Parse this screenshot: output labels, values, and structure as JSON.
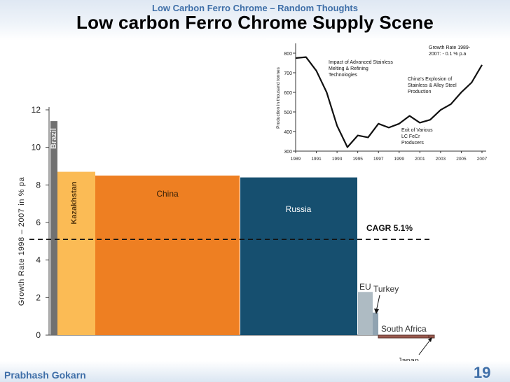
{
  "header": {
    "subtitle": "Low Carbon Ferro Chrome – Random Thoughts",
    "title": "Low carbon Ferro Chrome Supply Scene"
  },
  "footer": {
    "author": "Prabhash Gokarn",
    "page": "19"
  },
  "colors": {
    "accent": "#3f6fa8",
    "china": "#ee7f22",
    "russia": "#164f6f",
    "kazakhstan": "#fbbb55",
    "brazil": "#717171",
    "eu": "#aebbc3",
    "turkey": "#90a3b1"
  },
  "chart_data": [
    {
      "type": "bar",
      "variant": "variable-width",
      "ylabel": "Growth Rate 1998 – 2007 in % pa",
      "ylim": [
        0,
        12
      ],
      "yticks": [
        0,
        2,
        4,
        6,
        8,
        10,
        12
      ],
      "bars": [
        {
          "name": "Brazil",
          "value": 11.4,
          "color": "#717171",
          "label_style": "vertical-inside"
        },
        {
          "name": "Kazakhstan",
          "value": 8.7,
          "color": "#fbbb55",
          "label_style": "vertical-inside"
        },
        {
          "name": "China",
          "value": 8.5,
          "color": "#ee7f22",
          "label_style": "inside"
        },
        {
          "name": "Russia",
          "value": 8.4,
          "color": "#164f6f",
          "label_style": "inside"
        },
        {
          "name": "EU",
          "value": 2.3,
          "color": "#aebbc3",
          "label_style": "above"
        },
        {
          "name": "Turkey",
          "value": 1.2,
          "color": "#90a3b1",
          "label_style": "arrow"
        },
        {
          "name": "South Africa",
          "value": -0.15,
          "color": "#9b5a4e",
          "label_style": "above"
        },
        {
          "name": "Japan",
          "value": -0.15,
          "color": "#9b5a4e",
          "label_style": "below-arrow"
        }
      ],
      "reference_line": {
        "label": "CAGR 5.1%",
        "value": 5.1
      }
    },
    {
      "type": "line",
      "ylabel": "Production in thousand tonnes",
      "ylim": [
        300,
        850
      ],
      "yticks": [
        300,
        400,
        500,
        600,
        700,
        800
      ],
      "xticks": [
        "1989",
        "1991",
        "1993",
        "1995",
        "1997",
        "1999",
        "2001",
        "2003",
        "2005",
        "2007"
      ],
      "series": [
        {
          "x": [
            1989,
            1990,
            1991,
            1992,
            1993,
            1994,
            1995,
            1996,
            1997,
            1998,
            1999,
            2000,
            2001,
            2002,
            2003,
            2004,
            2005,
            2006,
            2007
          ],
          "values": [
            775,
            780,
            710,
            600,
            430,
            320,
            380,
            370,
            440,
            420,
            440,
            480,
            445,
            460,
            510,
            540,
            600,
            650,
            740
          ]
        }
      ],
      "annotations": [
        {
          "lines": [
            "Growth Rate 1989-",
            "2007: - 0.1 % p.a"
          ]
        },
        {
          "lines": [
            "Impact of Advanced Stainless",
            "Melting & Refining",
            "Technologies"
          ]
        },
        {
          "lines": [
            "China's Explosion of",
            "Stainless & Alloy Steel",
            "Production"
          ]
        },
        {
          "lines": [
            "Exit of Various",
            "LC FeCr",
            "Producers"
          ]
        }
      ]
    }
  ]
}
